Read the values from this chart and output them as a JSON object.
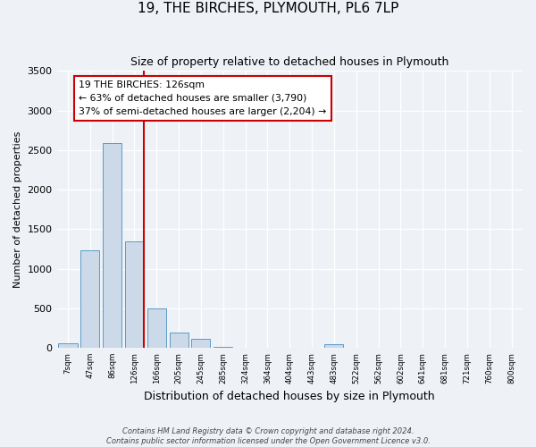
{
  "title": "19, THE BIRCHES, PLYMOUTH, PL6 7LP",
  "subtitle": "Size of property relative to detached houses in Plymouth",
  "xlabel": "Distribution of detached houses by size in Plymouth",
  "ylabel": "Number of detached properties",
  "bar_color": "#ccd9e8",
  "bar_edge_color": "#5a9bc8",
  "categories": [
    "7sqm",
    "47sqm",
    "86sqm",
    "126sqm",
    "166sqm",
    "205sqm",
    "245sqm",
    "285sqm",
    "324sqm",
    "364sqm",
    "404sqm",
    "443sqm",
    "483sqm",
    "522sqm",
    "562sqm",
    "602sqm",
    "641sqm",
    "681sqm",
    "721sqm",
    "760sqm",
    "800sqm"
  ],
  "values": [
    55,
    1230,
    2590,
    1350,
    500,
    195,
    110,
    10,
    0,
    0,
    0,
    0,
    50,
    0,
    0,
    0,
    0,
    0,
    0,
    0,
    0
  ],
  "ylim": [
    0,
    3500
  ],
  "yticks": [
    0,
    500,
    1000,
    1500,
    2000,
    2500,
    3000,
    3500
  ],
  "vline_x_index": 3,
  "vline_color": "#cc0000",
  "annotation_line1": "19 THE BIRCHES: 126sqm",
  "annotation_line2": "← 63% of detached houses are smaller (3,790)",
  "annotation_line3": "37% of semi-detached houses are larger (2,204) →",
  "annotation_box_color": "#cc0000",
  "footnote1": "Contains HM Land Registry data © Crown copyright and database right 2024.",
  "footnote2": "Contains public sector information licensed under the Open Government Licence v3.0.",
  "background_color": "#eef2f7",
  "plot_bg_color": "#eef2f7",
  "title_fontsize": 11,
  "subtitle_fontsize": 9,
  "xlabel_fontsize": 9,
  "ylabel_fontsize": 8
}
